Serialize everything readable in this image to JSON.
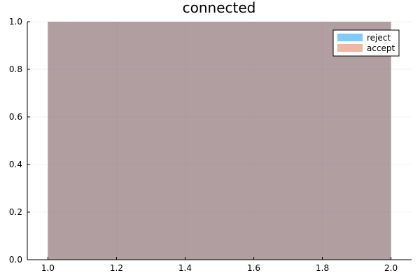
{
  "chart_data": {
    "type": "bar",
    "title": "connected",
    "xlabel": "",
    "ylabel": "",
    "xlim": [
      0.94,
      2.06
    ],
    "ylim": [
      0,
      1
    ],
    "xticks": [
      "1.0",
      "1.2",
      "1.4",
      "1.6",
      "1.8",
      "2.0"
    ],
    "xtick_values": [
      1.0,
      1.2,
      1.4,
      1.6,
      1.8,
      2.0
    ],
    "yticks": [
      "0.0",
      "0.2",
      "0.4",
      "0.6",
      "0.8",
      "1.0"
    ],
    "ytick_values": [
      0.0,
      0.2,
      0.4,
      0.6,
      0.8,
      1.0
    ],
    "grid": true,
    "legend_position": "top-right",
    "series": [
      {
        "name": "reject",
        "bins": [
          [
            1.0,
            2.0
          ]
        ],
        "values": [
          1.0
        ],
        "color": "#009AFA",
        "opacity": 0.5
      },
      {
        "name": "accept",
        "bins": [
          [
            1.0,
            2.0
          ]
        ],
        "values": [
          1.0
        ],
        "color": "#E26F46",
        "opacity": 0.5
      }
    ]
  }
}
